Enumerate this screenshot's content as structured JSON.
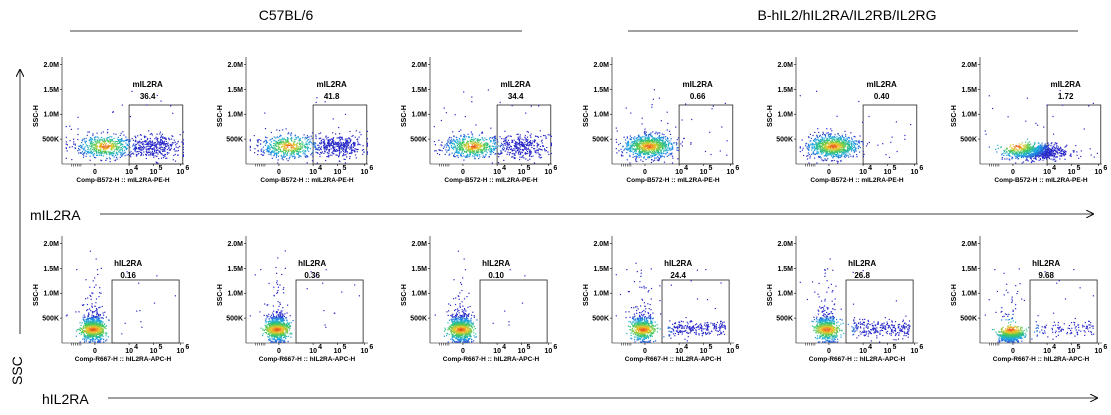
{
  "chart_data": {
    "type": "scatter",
    "groups": [
      {
        "label": "C57BL/6",
        "columns": [
          0,
          1,
          2
        ]
      },
      {
        "label": "B-hIL2/hIL2RA/IL2RB/IL2RG",
        "columns": [
          3,
          4,
          5
        ]
      }
    ],
    "row_axis_labels": {
      "mIL2RA": "mIL2RA",
      "hIL2RA": "hIL2RA",
      "ssc": "SSC"
    },
    "y_axis": {
      "label": "SSC-H",
      "ticks": [
        "2.0M",
        "1.5M",
        "1.0M",
        "500K"
      ]
    },
    "x_ticks_major": [
      "0",
      "10",
      "10",
      "10"
    ],
    "x_ticks_exp": [
      "4",
      "5",
      "6"
    ],
    "rows": [
      {
        "marker": "mIL2RA",
        "xlabel": "Comp-B572-H :: mIL2RA-PE-H",
        "gate_name": "mIL2RA",
        "panels": [
          {
            "value": "36.4",
            "percent": 36.4,
            "y_spread": "wide"
          },
          {
            "value": "41.8",
            "percent": 41.8,
            "y_spread": "wide"
          },
          {
            "value": "34.4",
            "percent": 34.4,
            "y_spread": "wide"
          },
          {
            "value": "0.66",
            "percent": 0.66,
            "y_spread": "wide"
          },
          {
            "value": "0.40",
            "percent": 0.4,
            "y_spread": "wide"
          },
          {
            "value": "1.72",
            "percent": 1.72,
            "y_spread": "low"
          }
        ]
      },
      {
        "marker": "hIL2RA",
        "xlabel": "Comp-R667-H :: hIL2RA-APC-H",
        "gate_name": "hIL2RA",
        "panels": [
          {
            "value": "0.16",
            "percent": 0.16,
            "y_spread": "narrow"
          },
          {
            "value": "0.36",
            "percent": 0.36,
            "y_spread": "narrow"
          },
          {
            "value": "0.10",
            "percent": 0.1,
            "y_spread": "narrow"
          },
          {
            "value": "24.4",
            "percent": 24.4,
            "y_spread": "narrow"
          },
          {
            "value": "26.8",
            "percent": 26.8,
            "y_spread": "narrow"
          },
          {
            "value": "9.68",
            "percent": 9.68,
            "y_spread": "low"
          }
        ]
      }
    ]
  }
}
